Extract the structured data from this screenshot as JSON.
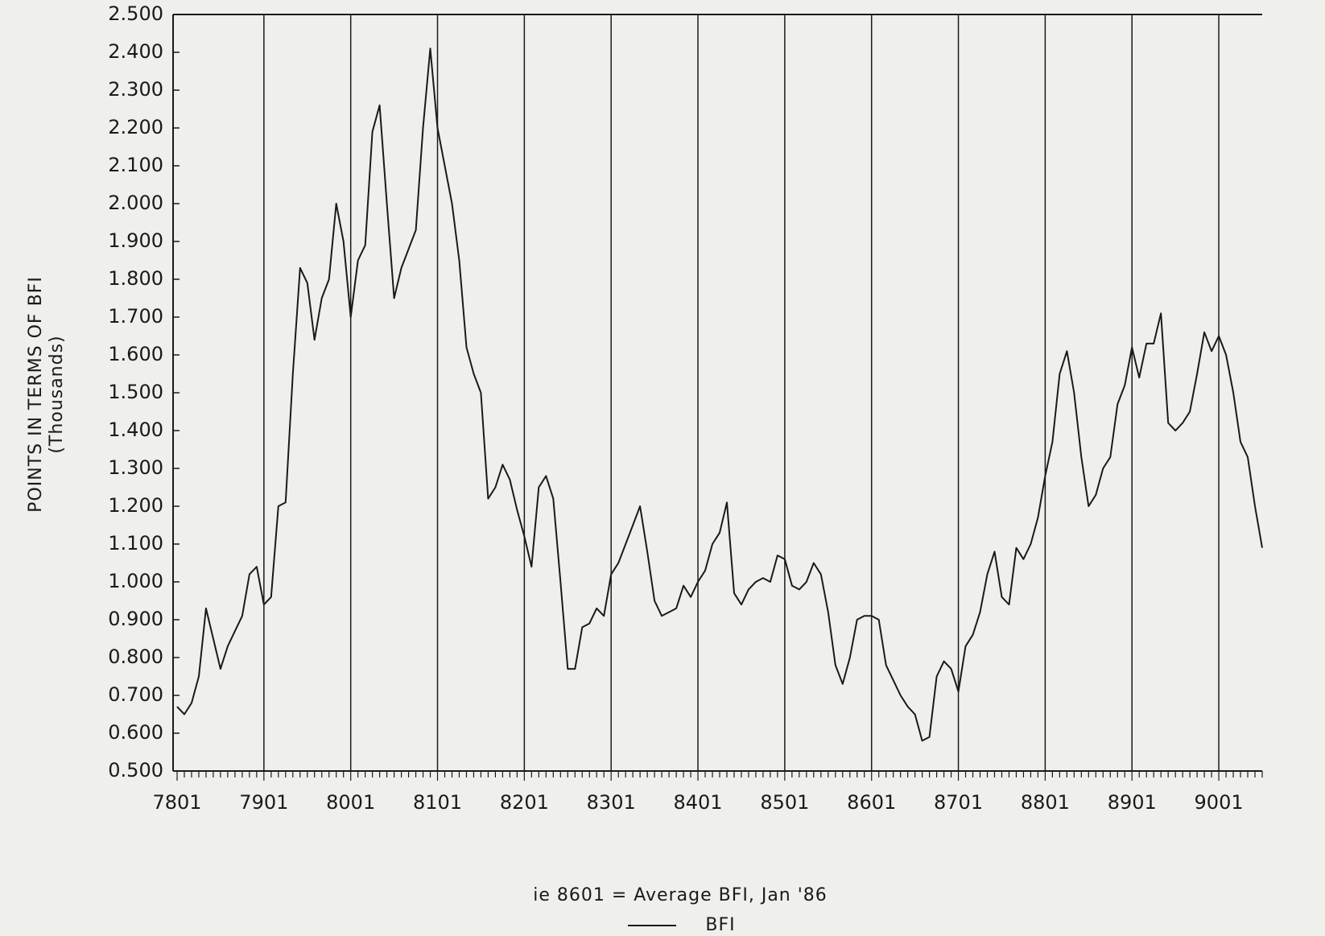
{
  "chart_data": {
    "type": "line",
    "ylabel": "POINTS IN TERMS OF BFI",
    "ylabel_unit": "(Thousands)",
    "xlabel": "ie 8601 = Average BFI, Jan '86",
    "categories": [
      "7801",
      null,
      null,
      null,
      null,
      null,
      null,
      null,
      null,
      null,
      null,
      null,
      "7901",
      null,
      null,
      null,
      null,
      null,
      null,
      null,
      null,
      null,
      null,
      null,
      "8001",
      null,
      null,
      null,
      null,
      null,
      null,
      null,
      null,
      null,
      null,
      null,
      "8101",
      null,
      null,
      null,
      null,
      null,
      null,
      null,
      null,
      null,
      null,
      null,
      "8201",
      null,
      null,
      null,
      null,
      null,
      null,
      null,
      null,
      null,
      null,
      null,
      "8301",
      null,
      null,
      null,
      null,
      null,
      null,
      null,
      null,
      null,
      null,
      null,
      "8401",
      null,
      null,
      null,
      null,
      null,
      null,
      null,
      null,
      null,
      null,
      null,
      "8501",
      null,
      null,
      null,
      null,
      null,
      null,
      null,
      null,
      null,
      null,
      null,
      "8601",
      null,
      null,
      null,
      null,
      null,
      null,
      null,
      null,
      null,
      null,
      null,
      "8701",
      null,
      null,
      null,
      null,
      null,
      null,
      null,
      null,
      null,
      null,
      null,
      "8801",
      null,
      null,
      null,
      null,
      null,
      null,
      null,
      null,
      null,
      null,
      null,
      "8901",
      null,
      null,
      null,
      null,
      null,
      null,
      null,
      null,
      null,
      null,
      null,
      "9001",
      null,
      null,
      null,
      null,
      null,
      null
    ],
    "series": [
      {
        "name": "BFI",
        "color": "#1a1a1a",
        "values": [
          0.67,
          0.65,
          0.68,
          0.75,
          0.93,
          0.85,
          0.77,
          0.83,
          0.87,
          0.91,
          1.02,
          1.04,
          0.94,
          0.96,
          1.2,
          1.21,
          1.55,
          1.83,
          1.79,
          1.64,
          1.75,
          1.8,
          2.0,
          1.9,
          1.7,
          1.85,
          1.89,
          2.19,
          2.26,
          2.0,
          1.75,
          1.83,
          1.88,
          1.93,
          2.2,
          2.41,
          2.2,
          2.1,
          2.0,
          1.85,
          1.62,
          1.55,
          1.5,
          1.22,
          1.25,
          1.31,
          1.27,
          1.19,
          1.12,
          1.04,
          1.25,
          1.28,
          1.22,
          1.0,
          0.77,
          0.77,
          0.88,
          0.89,
          0.93,
          0.91,
          1.02,
          1.05,
          1.1,
          1.15,
          1.2,
          1.08,
          0.95,
          0.91,
          0.92,
          0.93,
          0.99,
          0.96,
          1.0,
          1.03,
          1.1,
          1.13,
          1.21,
          0.97,
          0.94,
          0.98,
          1.0,
          1.01,
          1.0,
          1.07,
          1.06,
          0.99,
          0.98,
          1.0,
          1.05,
          1.02,
          0.92,
          0.78,
          0.73,
          0.8,
          0.9,
          0.91,
          0.91,
          0.9,
          0.78,
          0.74,
          0.7,
          0.67,
          0.65,
          0.58,
          0.59,
          0.75,
          0.79,
          0.77,
          0.71,
          0.83,
          0.86,
          0.92,
          1.02,
          1.08,
          0.96,
          0.94,
          1.09,
          1.06,
          1.1,
          1.17,
          1.28,
          1.37,
          1.55,
          1.61,
          1.5,
          1.33,
          1.2,
          1.23,
          1.3,
          1.33,
          1.47,
          1.52,
          1.62,
          1.54,
          1.63,
          1.63,
          1.71,
          1.42,
          1.4,
          1.42,
          1.45,
          1.55,
          1.66,
          1.61,
          1.65,
          1.6,
          1.5,
          1.37,
          1.33,
          1.2,
          1.09
        ]
      }
    ],
    "ylim": [
      0.5,
      2.5
    ],
    "yticks": [
      {
        "value": 0.5,
        "label": "0.500"
      },
      {
        "value": 0.6,
        "label": "0.600"
      },
      {
        "value": 0.7,
        "label": "0.700"
      },
      {
        "value": 0.8,
        "label": "0.800"
      },
      {
        "value": 0.9,
        "label": "0.900"
      },
      {
        "value": 1.0,
        "label": "1.000"
      },
      {
        "value": 1.1,
        "label": "1.100"
      },
      {
        "value": 1.2,
        "label": "1.200"
      },
      {
        "value": 1.3,
        "label": "1.300"
      },
      {
        "value": 1.4,
        "label": "1.400"
      },
      {
        "value": 1.5,
        "label": "1.500"
      },
      {
        "value": 1.6,
        "label": "1.600"
      },
      {
        "value": 1.7,
        "label": "1.700"
      },
      {
        "value": 1.8,
        "label": "1.800"
      },
      {
        "value": 1.9,
        "label": "1.900"
      },
      {
        "value": 2.0,
        "label": "2.000"
      },
      {
        "value": 2.1,
        "label": "2.100"
      },
      {
        "value": 2.2,
        "label": "2.200"
      },
      {
        "value": 2.3,
        "label": "2.300"
      },
      {
        "value": 2.4,
        "label": "2.400"
      },
      {
        "value": 2.5,
        "label": "2.500"
      }
    ],
    "grid": true
  }
}
